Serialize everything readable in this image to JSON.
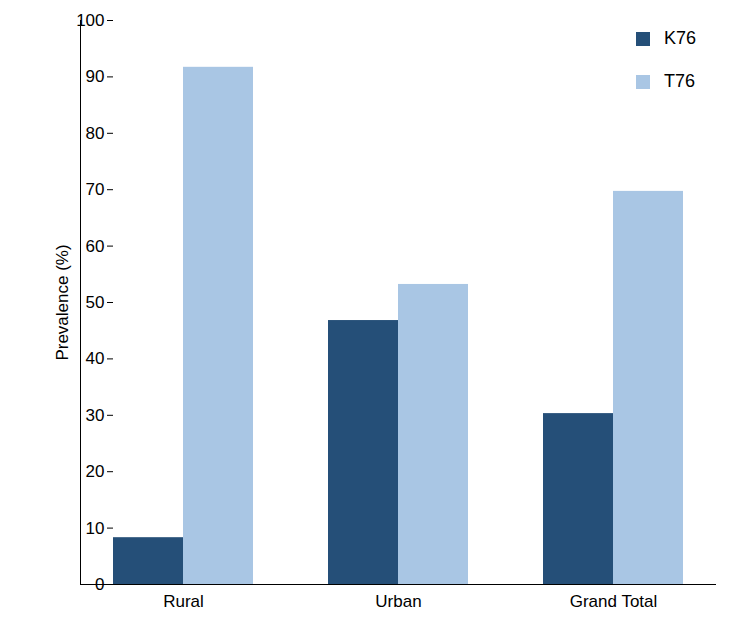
{
  "chart_data": {
    "type": "bar",
    "y_label": "Prevalence (%)",
    "categories": [
      "Rural",
      "Urban",
      "Grand Total"
    ],
    "series": [
      {
        "name": "K76",
        "color": "#254f78",
        "values": [
          8.3,
          46.8,
          30.3
        ]
      },
      {
        "name": "T76",
        "color": "#a9c6e4",
        "values": [
          91.7,
          53.2,
          69.7
        ]
      }
    ],
    "ylim": [
      0,
      100
    ],
    "yticks": [
      0,
      10,
      20,
      30,
      40,
      50,
      60,
      70,
      80,
      90,
      100
    ],
    "grid": false,
    "legend": "top-right"
  }
}
